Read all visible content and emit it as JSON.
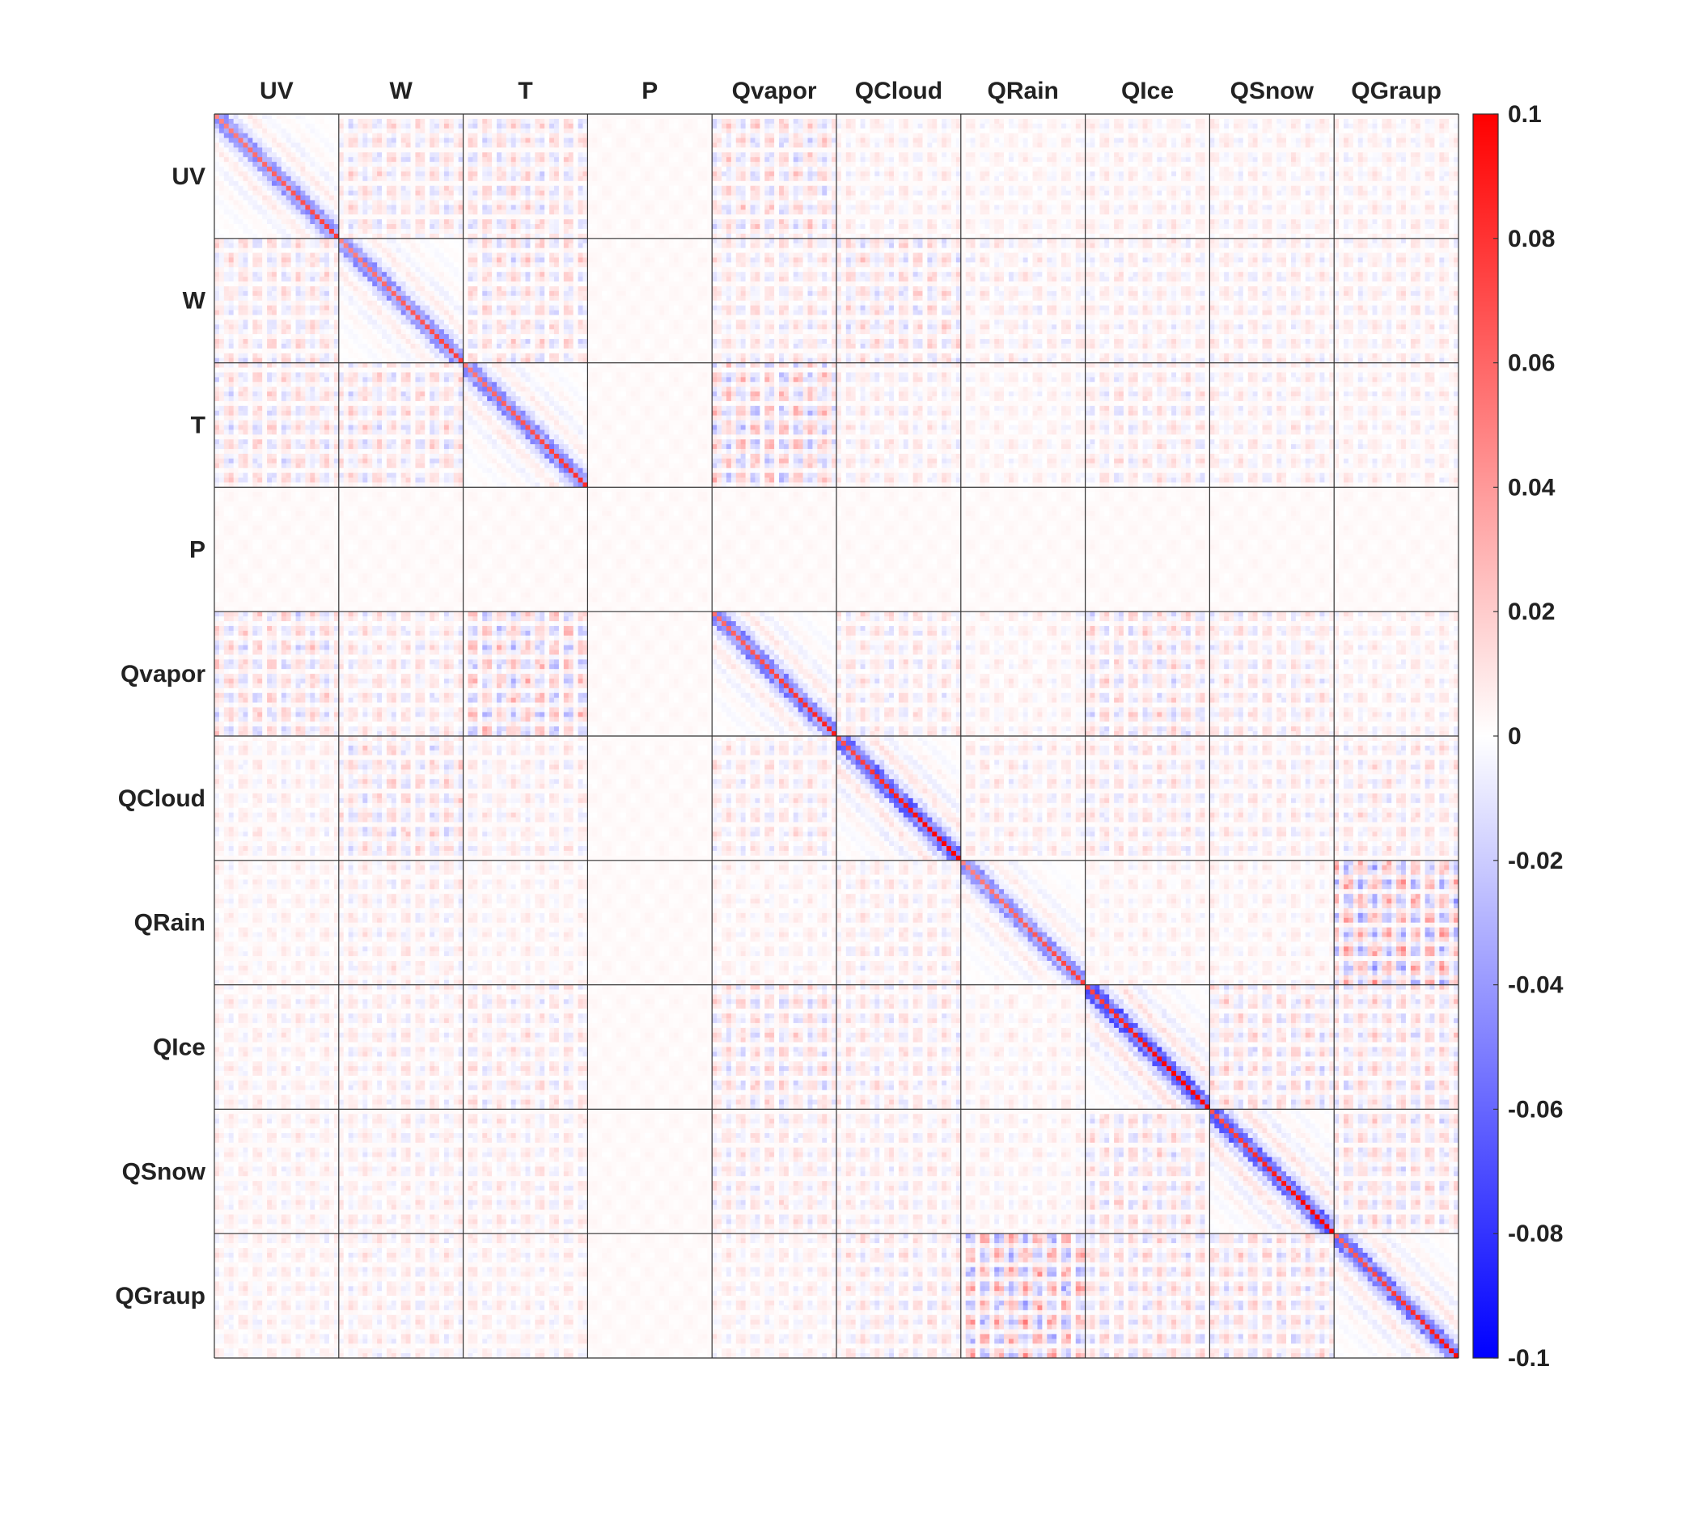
{
  "chart_data": {
    "type": "heatmap",
    "title": "",
    "xlabel": "",
    "ylabel": "",
    "blocks": [
      "UV",
      "W",
      "T",
      "P",
      "Qvapor",
      "QCloud",
      "QRain",
      "QIce",
      "QSnow",
      "QGraup"
    ],
    "colorbar": {
      "min": -0.1,
      "max": 0.1,
      "ticks": [
        0.1,
        0.08,
        0.06,
        0.04,
        0.02,
        0,
        -0.02,
        -0.04,
        -0.06,
        -0.08,
        -0.1
      ],
      "tick_labels": [
        "0.1",
        "0.08",
        "0.06",
        "0.04",
        "0.02",
        "0",
        "-0.02",
        "-0.04",
        "-0.06",
        "-0.08",
        "-0.1"
      ],
      "colormap": "blue-white-red",
      "low_color": "#0000ff",
      "mid_color": "#ffffff",
      "high_color": "#ff0000"
    },
    "background_value": 0.002,
    "block_strength": [
      [
        0.06,
        0.018,
        0.02,
        0.002,
        0.022,
        0.01,
        0.008,
        0.01,
        0.01,
        0.01
      ],
      [
        0.018,
        0.06,
        0.02,
        0.002,
        0.015,
        0.02,
        0.012,
        0.012,
        0.012,
        0.012
      ],
      [
        0.02,
        0.02,
        0.065,
        0.002,
        0.03,
        0.012,
        0.008,
        0.015,
        0.012,
        0.01
      ],
      [
        0.002,
        0.002,
        0.002,
        0.002,
        0.002,
        0.002,
        0.002,
        0.002,
        0.002,
        0.002
      ],
      [
        0.022,
        0.015,
        0.03,
        0.002,
        0.07,
        0.015,
        0.008,
        0.02,
        0.015,
        0.01
      ],
      [
        0.01,
        0.02,
        0.012,
        0.002,
        0.015,
        0.085,
        0.012,
        0.015,
        0.012,
        0.015
      ],
      [
        0.008,
        0.012,
        0.008,
        0.002,
        0.008,
        0.012,
        0.06,
        0.008,
        0.008,
        0.04
      ],
      [
        0.01,
        0.012,
        0.015,
        0.002,
        0.02,
        0.015,
        0.008,
        0.09,
        0.02,
        0.02
      ],
      [
        0.01,
        0.012,
        0.012,
        0.002,
        0.015,
        0.012,
        0.008,
        0.02,
        0.085,
        0.02
      ],
      [
        0.01,
        0.012,
        0.01,
        0.002,
        0.01,
        0.015,
        0.04,
        0.02,
        0.02,
        0.075
      ]
    ]
  }
}
